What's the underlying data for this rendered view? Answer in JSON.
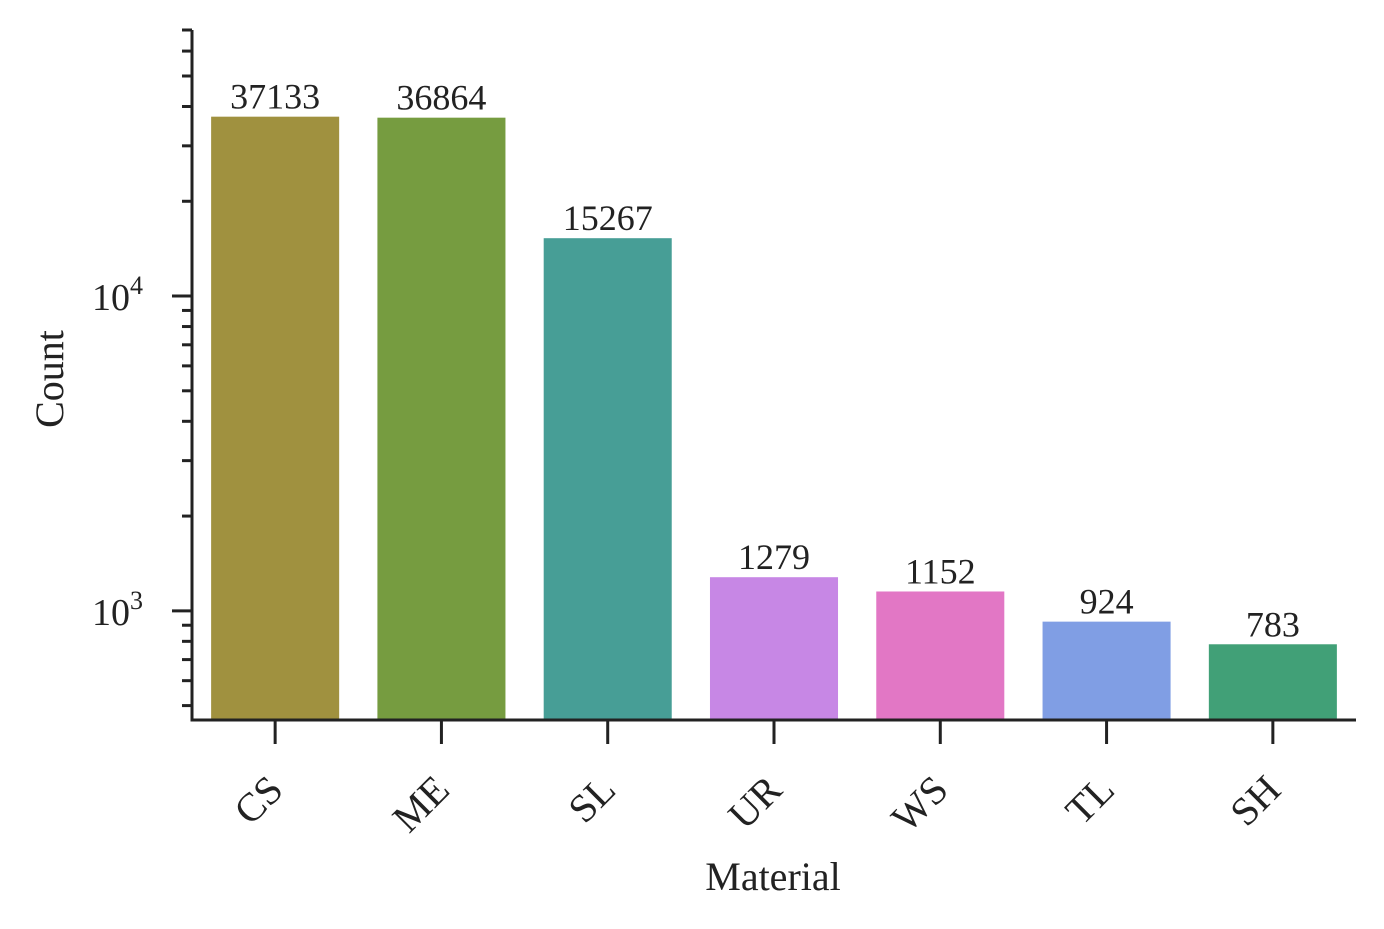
{
  "chart_data": {
    "type": "bar",
    "xlabel": "Material",
    "ylabel": "Count",
    "y_scale": "log",
    "ylim": [
      450,
      70000
    ],
    "y_major_ticks": [
      {
        "value": 1000,
        "base": "10",
        "exp": "3"
      },
      {
        "value": 10000,
        "base": "10",
        "exp": "4"
      }
    ],
    "categories": [
      "CS",
      "ME",
      "SL",
      "UR",
      "WS",
      "TL",
      "SH"
    ],
    "values": [
      37133,
      36864,
      15267,
      1279,
      1152,
      924,
      783
    ],
    "data_labels": [
      "37133",
      "36864",
      "15267",
      "1279",
      "1152",
      "924",
      "783"
    ],
    "colors": [
      "#a0913f",
      "#769c40",
      "#479e96",
      "#c787e5",
      "#e277c5",
      "#809ee4",
      "#41a077"
    ],
    "grid": false,
    "legend": "none"
  }
}
